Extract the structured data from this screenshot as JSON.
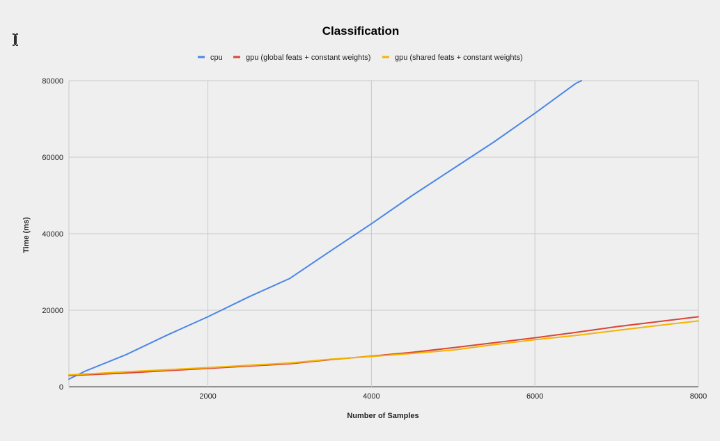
{
  "cursor": {
    "icon": "text-cursor-icon"
  },
  "chart_data": {
    "type": "line",
    "title": "Classification",
    "xlabel": "Number of Samples",
    "ylabel": "Time (ms)",
    "xlim": [
      300,
      8000
    ],
    "ylim": [
      0,
      80000
    ],
    "x_ticks": [
      2000,
      4000,
      6000,
      8000
    ],
    "x_tick_labels": [
      "2000",
      "4000",
      "6000",
      "8000"
    ],
    "y_ticks": [
      0,
      20000,
      40000,
      60000,
      80000
    ],
    "y_tick_labels": [
      "0",
      "20000",
      "40000",
      "60000",
      "80000"
    ],
    "grid": true,
    "legend_position": "top",
    "series": [
      {
        "name": "cpu",
        "color": "#4a86e8",
        "x": [
          300,
          500,
          1000,
          1500,
          2000,
          2500,
          3000,
          3500,
          4000,
          4500,
          5000,
          5500,
          6000,
          6500,
          6570
        ],
        "y": [
          2000,
          4100,
          8400,
          13500,
          18300,
          23500,
          28300,
          35500,
          42600,
          50000,
          57000,
          64000,
          71500,
          79300,
          80000
        ]
      },
      {
        "name": "gpu (global feats + constant weights)",
        "color": "#db4437",
        "x": [
          300,
          1000,
          2000,
          3000,
          3500,
          4000,
          4500,
          5000,
          5500,
          6000,
          6500,
          7000,
          7500,
          8000
        ],
        "y": [
          2900,
          3600,
          4800,
          6000,
          7100,
          8000,
          9000,
          10200,
          11500,
          12800,
          14200,
          15700,
          17000,
          18300
        ]
      },
      {
        "name": "gpu (shared feats + constant weights)",
        "color": "#f4b400",
        "x": [
          300,
          1000,
          2000,
          3000,
          3500,
          4000,
          4500,
          5000,
          5500,
          6000,
          6500,
          7000,
          7500,
          8000
        ],
        "y": [
          3100,
          3900,
          5000,
          6200,
          7200,
          7900,
          8700,
          9600,
          11000,
          12300,
          13400,
          14700,
          16000,
          17200
        ]
      }
    ]
  }
}
